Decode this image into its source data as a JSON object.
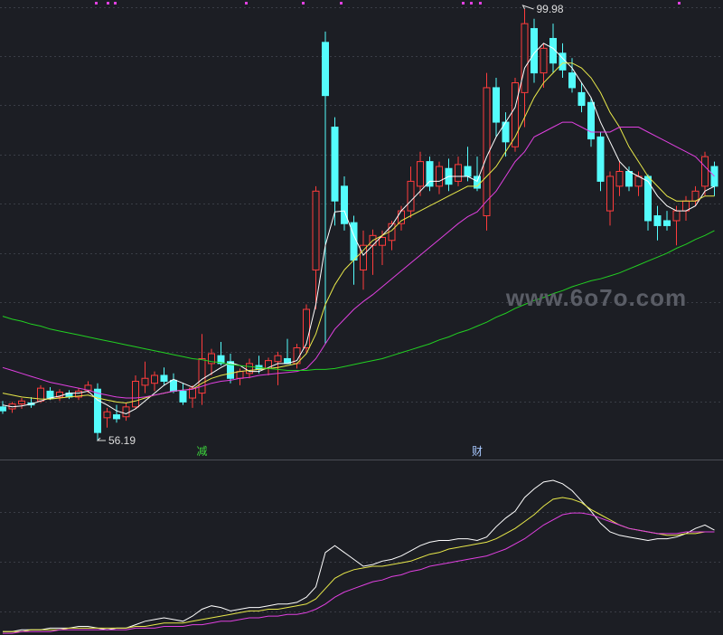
{
  "chart_data": [
    {
      "type": "candlestick",
      "categories": [
        null,
        null,
        null,
        null,
        null,
        null,
        null,
        null,
        null,
        null,
        null,
        null,
        null,
        null,
        null,
        null,
        null,
        null,
        null,
        null,
        null,
        "减",
        null,
        null,
        null,
        null,
        null,
        null,
        null,
        null,
        null,
        null,
        null,
        null,
        null,
        null,
        null,
        null,
        null,
        null,
        null,
        null,
        null,
        null,
        null,
        null,
        null,
        null,
        null,
        null,
        "财",
        null,
        null,
        null,
        null,
        null,
        null,
        null,
        null,
        null,
        null,
        null,
        null,
        null,
        null,
        null,
        null,
        null,
        null,
        null,
        null,
        null,
        null,
        null,
        null,
        null
      ],
      "open": [
        59.6,
        59.4,
        59.9,
        60.0,
        60.2,
        61.2,
        60.6,
        61.0,
        60.6,
        61.3,
        61.4,
        58.5,
        58.8,
        58.6,
        59.6,
        61.8,
        62.0,
        62.8,
        62.3,
        61.2,
        60.5,
        61.0,
        64.0,
        64.8,
        64.2,
        62.5,
        63.0,
        63.8,
        63.5,
        64.2,
        64.5,
        64.0,
        65.6,
        73.5,
        96.6,
        88.0,
        82.0,
        78.3,
        73.5,
        76.0,
        76.0,
        76.5,
        78.2,
        79.5,
        82.0,
        84.5,
        82.0,
        83.8,
        82.5,
        84.0,
        83.0,
        79.0,
        92.0,
        88.5,
        86.0,
        91.5,
        98.0,
        93.5,
        97.0,
        95.5,
        93.5,
        91.5,
        90.5,
        87.0,
        79.5,
        82.0,
        83.5,
        82.0,
        83.0,
        79.0,
        78.5,
        78.5,
        79.5,
        80.5,
        82.0,
        84.0
      ],
      "high": [
        60.2,
        60.1,
        60.5,
        60.6,
        61.8,
        61.6,
        61.4,
        61.3,
        61.5,
        62.2,
        62.0,
        59.5,
        59.8,
        60.0,
        62.8,
        64.2,
        63.2,
        63.6,
        63.0,
        62.0,
        61.8,
        67.0,
        65.5,
        66.2,
        65.0,
        63.5,
        64.5,
        64.8,
        64.6,
        65.2,
        66.5,
        66.0,
        70.0,
        82.0,
        97.7,
        89.0,
        83.0,
        79.0,
        77.5,
        77.6,
        77.5,
        78.5,
        80.0,
        84.0,
        85.5,
        85.0,
        84.5,
        84.8,
        85.0,
        86.0,
        85.0,
        93.5,
        93.0,
        89.5,
        93.0,
        99.98,
        99.0,
        96.5,
        98.5,
        96.5,
        95.0,
        92.5,
        91.0,
        87.5,
        83.5,
        84.5,
        84.0,
        83.5,
        83.2,
        80.0,
        79.5,
        80.0,
        81.0,
        82.0,
        85.5,
        84.5
      ],
      "low": [
        58.9,
        59.0,
        59.4,
        59.5,
        60.0,
        60.3,
        60.2,
        60.4,
        60.3,
        61.0,
        56.19,
        57.5,
        58.0,
        58.2,
        59.4,
        61.0,
        61.2,
        61.8,
        61.0,
        59.8,
        59.5,
        59.8,
        62.8,
        63.8,
        62.0,
        61.8,
        62.5,
        63.0,
        62.8,
        61.8,
        64.0,
        63.5,
        65.0,
        69.5,
        66.0,
        78.0,
        77.5,
        72.0,
        71.5,
        73.0,
        74.0,
        75.5,
        77.5,
        78.8,
        81.0,
        81.5,
        81.2,
        81.5,
        82.0,
        82.5,
        81.5,
        77.5,
        87.0,
        85.0,
        85.5,
        88.0,
        92.5,
        92.0,
        93.5,
        93.0,
        91.5,
        89.5,
        86.0,
        81.5,
        78.0,
        81.0,
        81.5,
        81.0,
        77.5,
        76.5,
        77.5,
        76.0,
        78.5,
        80.0,
        81.0,
        81.0
      ],
      "close": [
        59.2,
        59.9,
        60.2,
        59.8,
        61.5,
        60.5,
        61.1,
        60.6,
        61.2,
        61.8,
        57.0,
        59.1,
        58.4,
        59.6,
        62.2,
        62.5,
        62.8,
        62.2,
        61.2,
        60.1,
        61.5,
        64.5,
        65.0,
        64.0,
        62.5,
        63.2,
        64.0,
        63.4,
        64.3,
        64.8,
        64.0,
        65.6,
        69.5,
        81.5,
        91.2,
        80.5,
        78.2,
        74.5,
        76.0,
        77.0,
        76.8,
        78.2,
        79.5,
        82.5,
        84.5,
        82.0,
        84.0,
        82.2,
        84.2,
        83.0,
        81.8,
        92.0,
        88.5,
        86.5,
        92.5,
        98.5,
        93.5,
        96.0,
        94.5,
        93.8,
        92.0,
        90.2,
        86.8,
        82.5,
        83.0,
        83.5,
        82.0,
        83.0,
        78.5,
        78.0,
        78.0,
        79.5,
        80.5,
        81.5,
        85.0,
        82.0
      ],
      "up_color": "#ff3c3c",
      "down_color": "#54fcfc",
      "series": [
        {
          "color": "#ffffff",
          "values": [
            59.8,
            59.6,
            59.7,
            59.9,
            60.2,
            60.5,
            60.7,
            61.0,
            61.0,
            61.2,
            60.3,
            59.8,
            59.2,
            58.9,
            59.4,
            60.2,
            61.0,
            61.8,
            62.4,
            62.0,
            61.6,
            62.4,
            63.0,
            63.6,
            64.1,
            63.8,
            63.2,
            63.2,
            63.6,
            64.0,
            64.0,
            64.3,
            66.0,
            70.0,
            76.0,
            79.4,
            79.5,
            77.0,
            75.0,
            76.0,
            77.0,
            78.0,
            79.5,
            80.5,
            81.5,
            82.5,
            82.5,
            83.0,
            83.0,
            83.0,
            82.5,
            85.0,
            87.0,
            88.5,
            90.0,
            94.0,
            95.5,
            96.5,
            96.0,
            95.0,
            94.0,
            92.5,
            91.0,
            88.5,
            86.5,
            84.5,
            83.5,
            83.0,
            82.5,
            81.0,
            80.0,
            79.5,
            79.5,
            80.0,
            81.5,
            82.0
          ]
        },
        {
          "color": "#e8e84a",
          "values": [
            61.0,
            60.8,
            60.6,
            60.5,
            60.4,
            60.4,
            60.5,
            60.6,
            60.7,
            60.8,
            60.5,
            60.3,
            60.1,
            60.0,
            60.2,
            60.5,
            60.8,
            61.0,
            61.2,
            61.3,
            61.4,
            62.0,
            62.5,
            62.8,
            63.0,
            63.2,
            63.3,
            63.4,
            63.5,
            63.6,
            63.8,
            64.0,
            65.0,
            67.0,
            70.0,
            72.0,
            73.5,
            74.5,
            75.5,
            76.5,
            77.0,
            77.5,
            78.5,
            79.0,
            79.5,
            80.0,
            80.5,
            81.0,
            81.5,
            82.0,
            82.0,
            83.0,
            84.0,
            85.5,
            87.0,
            89.0,
            91.0,
            92.5,
            93.5,
            94.5,
            94.5,
            94.0,
            93.0,
            91.5,
            89.5,
            88.0,
            86.0,
            84.5,
            83.0,
            82.0,
            81.0,
            80.5,
            80.5,
            80.5,
            81.0,
            81.0
          ]
        },
        {
          "color": "#e040e0",
          "values": [
            63.6,
            63.3,
            63.0,
            62.7,
            62.4,
            62.1,
            61.9,
            61.7,
            61.5,
            61.3,
            61.0,
            60.8,
            60.6,
            60.5,
            60.5,
            60.6,
            60.8,
            61.0,
            61.2,
            61.3,
            61.4,
            61.7,
            62.0,
            62.2,
            62.3,
            62.5,
            62.6,
            62.8,
            62.9,
            63.0,
            63.1,
            63.2,
            63.5,
            64.5,
            66.0,
            67.5,
            68.5,
            69.5,
            70.3,
            71.0,
            71.8,
            72.6,
            73.4,
            74.2,
            75.0,
            75.8,
            76.6,
            77.4,
            78.2,
            78.9,
            79.4,
            80.5,
            81.5,
            83.0,
            84.5,
            85.5,
            87.0,
            87.5,
            88.0,
            88.5,
            88.5,
            88.0,
            87.5,
            87.5,
            87.5,
            88.0,
            88.0,
            88.0,
            87.5,
            87.0,
            86.5,
            86.0,
            85.5,
            85.0,
            84.0,
            83.0
          ]
        },
        {
          "color": "#22d022",
          "values": [
            68.8,
            68.5,
            68.3,
            68.0,
            67.8,
            67.5,
            67.3,
            67.1,
            66.9,
            66.7,
            66.5,
            66.3,
            66.1,
            65.9,
            65.7,
            65.5,
            65.3,
            65.1,
            64.9,
            64.7,
            64.5,
            64.4,
            64.2,
            64.1,
            63.9,
            63.8,
            63.7,
            63.6,
            63.5,
            63.4,
            63.3,
            63.3,
            63.3,
            63.4,
            63.4,
            63.5,
            63.7,
            63.9,
            64.1,
            64.3,
            64.5,
            64.8,
            65.1,
            65.4,
            65.7,
            66.0,
            66.4,
            66.7,
            67.1,
            67.4,
            67.8,
            68.2,
            68.7,
            69.1,
            69.6,
            70.0,
            70.4,
            70.7,
            71.1,
            71.4,
            71.8,
            72.1,
            72.4,
            72.6,
            72.9,
            73.2,
            73.6,
            74.0,
            74.4,
            74.8,
            75.2,
            75.7,
            76.1,
            76.6,
            77.0,
            77.5
          ]
        }
      ],
      "ylim": [
        54.26,
        100.9
      ]
    },
    {
      "type": "line",
      "series": [
        {
          "color": "#ffffff",
          "values": [
            2,
            2,
            3,
            3,
            3,
            4,
            4,
            4,
            5,
            5,
            4,
            3,
            4,
            4,
            6,
            8,
            9,
            10,
            9,
            8,
            11,
            15,
            17,
            16,
            14,
            15,
            16,
            16,
            17,
            18,
            18,
            19,
            22,
            28,
            48,
            52,
            48,
            44,
            40,
            41,
            43,
            44,
            46,
            49,
            52,
            54,
            55,
            55,
            56,
            56,
            55,
            57,
            63,
            68,
            72,
            80,
            85,
            89,
            90,
            88,
            84,
            78,
            72,
            65,
            60,
            58,
            57,
            56,
            55,
            56,
            56,
            57,
            59,
            62,
            64,
            61
          ]
        },
        {
          "color": "#e8e84a",
          "values": [
            2,
            2,
            2,
            3,
            3,
            3,
            3,
            4,
            4,
            4,
            4,
            4,
            4,
            4,
            5,
            5,
            6,
            7,
            7,
            7,
            8,
            9,
            10,
            11,
            12,
            13,
            14,
            14,
            15,
            15,
            16,
            17,
            18,
            21,
            27,
            33,
            36,
            38,
            39,
            40,
            40,
            41,
            42,
            43,
            45,
            47,
            48,
            50,
            51,
            52,
            53,
            54,
            56,
            59,
            62,
            66,
            70,
            75,
            79,
            80,
            79,
            77,
            73,
            70,
            67,
            64,
            62,
            61,
            60,
            59,
            58,
            58,
            59,
            59,
            60,
            60
          ]
        },
        {
          "color": "#e040e0",
          "values": [
            1,
            1,
            2,
            2,
            2,
            2,
            3,
            3,
            3,
            3,
            3,
            3,
            3,
            3,
            4,
            4,
            4,
            5,
            5,
            5,
            6,
            6,
            7,
            8,
            8,
            9,
            10,
            10,
            11,
            11,
            12,
            12,
            13,
            15,
            18,
            22,
            25,
            27,
            29,
            31,
            32,
            34,
            35,
            37,
            38,
            40,
            41,
            42,
            43,
            44,
            45,
            46,
            48,
            50,
            53,
            56,
            60,
            64,
            67,
            70,
            71,
            71,
            70,
            68,
            66,
            64,
            62,
            61,
            60,
            59,
            59,
            59,
            60,
            60,
            60,
            60
          ]
        }
      ],
      "ylim": [
        0,
        100
      ]
    }
  ],
  "watermark": "www.6o7o.com"
}
